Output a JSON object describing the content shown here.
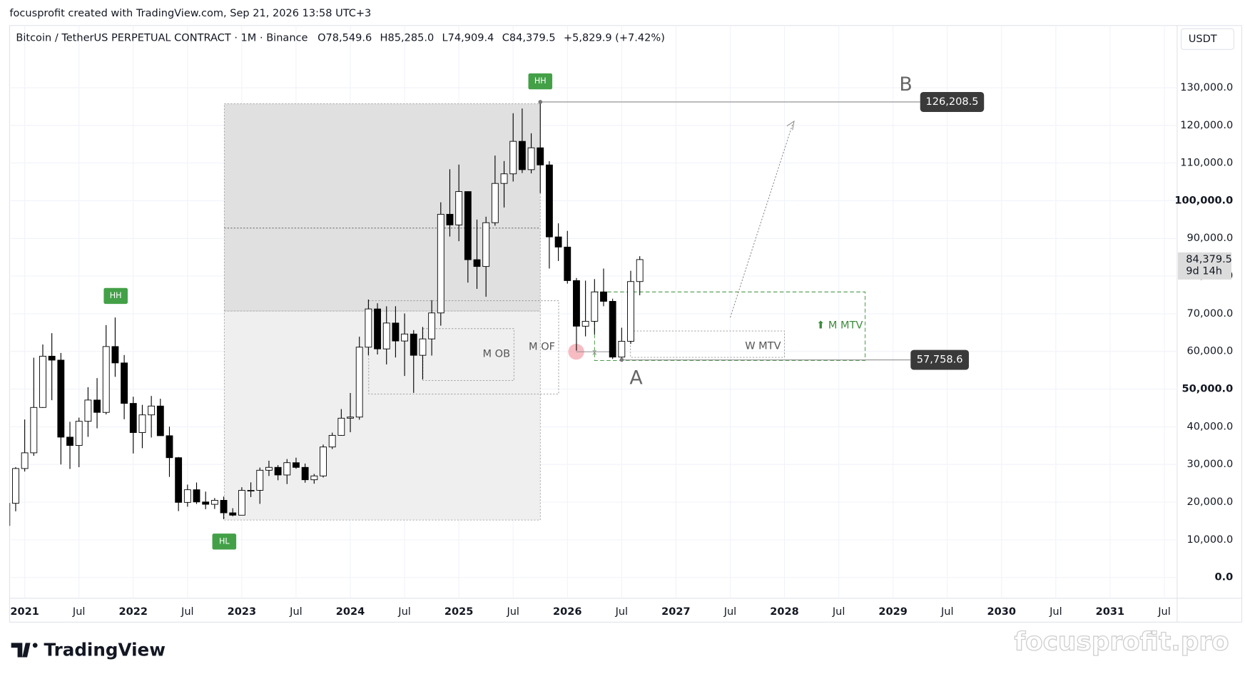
{
  "header": {
    "attribution": "focusprofit created with TradingView.com, Sep 21, 2026 13:58 UTC+3"
  },
  "chart_data": {
    "type": "candlestick",
    "title": "Bitcoin / TetherUS PERPETUAL CONTRACT · 1M · Binance",
    "legend_values": [
      "O78,549.6",
      "H85,285.0",
      "L74,909.4",
      "C84,379.5",
      "+5,829.9 (+7.42%)"
    ],
    "currency": "USDT",
    "x": [
      "2020-11",
      "2020-12",
      "2021-01",
      "2021-02",
      "2021-03",
      "2021-04",
      "2021-05",
      "2021-06",
      "2021-07",
      "2021-08",
      "2021-09",
      "2021-10",
      "2021-11",
      "2021-12",
      "2022-01",
      "2022-02",
      "2022-03",
      "2022-04",
      "2022-05",
      "2022-06",
      "2022-07",
      "2022-08",
      "2022-09",
      "2022-10",
      "2022-11",
      "2022-12",
      "2023-01",
      "2023-02",
      "2023-03",
      "2023-04",
      "2023-05",
      "2023-06",
      "2023-07",
      "2023-08",
      "2023-09",
      "2023-10",
      "2023-11",
      "2023-12",
      "2024-01",
      "2024-02",
      "2024-03",
      "2024-04",
      "2024-05",
      "2024-06",
      "2024-07",
      "2024-08",
      "2024-09",
      "2024-10",
      "2024-11",
      "2024-12",
      "2025-01",
      "2025-02",
      "2025-03",
      "2025-04",
      "2025-05",
      "2025-06",
      "2025-07",
      "2025-08",
      "2025-09",
      "2025-10",
      "2025-11",
      "2025-12",
      "2026-01",
      "2026-02",
      "2026-03",
      "2026-04",
      "2026-05",
      "2026-06",
      "2026-07",
      "2026-08",
      "2026-09"
    ],
    "open": [
      13791,
      19695,
      28923,
      33092,
      45135,
      58740,
      57697,
      37253,
      35045,
      41461,
      47100,
      43820,
      61300,
      56950,
      46216,
      38466,
      43160,
      45510,
      37630,
      31801,
      19942,
      23297,
      20048,
      19423,
      20491,
      17165,
      16542,
      23125,
      23141,
      28465,
      29233,
      27210,
      30472,
      29232,
      25941,
      26962,
      34640,
      37724,
      42284,
      42580,
      61131,
      71280,
      60672,
      67540,
      62772,
      64628,
      58974,
      63327,
      70215,
      96407,
      93576,
      102429,
      84350,
      82550,
      94172,
      104591,
      107135,
      115764,
      108246,
      114049,
      109500,
      90400,
      87700,
      78800,
      66700,
      68000,
      75800,
      73300,
      58500,
      62700,
      78549.6
    ],
    "high": [
      19863,
      29300,
      41950,
      58352,
      61844,
      64854,
      59592,
      41330,
      42448,
      50500,
      52920,
      67000,
      69000,
      59053,
      47990,
      45821,
      48189,
      47444,
      40023,
      31982,
      24668,
      25211,
      22799,
      21085,
      21480,
      18387,
      23960,
      25250,
      29185,
      31000,
      29820,
      31431,
      31804,
      30244,
      27483,
      35280,
      38450,
      44700,
      48969,
      63913,
      73777,
      72797,
      71979,
      71997,
      70079,
      65660,
      66498,
      73620,
      99588,
      108353,
      109588,
      102500,
      95000,
      95758,
      111980,
      110530,
      123218,
      124474,
      117900,
      126208.5,
      110500,
      94000,
      92000,
      79500,
      78800,
      79200,
      82000,
      74000,
      66300,
      81400,
      85285.0
    ],
    "low": [
      13195,
      17572,
      28130,
      32296,
      45000,
      47044,
      30000,
      28805,
      29278,
      37332,
      39600,
      43283,
      53256,
      42000,
      32917,
      34322,
      37155,
      37578,
      26700,
      17622,
      18781,
      19520,
      18125,
      18190,
      15476,
      16256,
      16499,
      21351,
      19549,
      26942,
      25811,
      24800,
      28861,
      25166,
      24901,
      26538,
      34097,
      37617,
      38555,
      41884,
      59005,
      59191,
      56552,
      58402,
      53485,
      49000,
      52550,
      58895,
      66835,
      90500,
      89256,
      78258,
      76606,
      74508,
      93377,
      98200,
      105100,
      107350,
      107255,
      102000,
      82000,
      84000,
      78000,
      60200,
      64000,
      64500,
      72000,
      58000,
      57758.6,
      62000,
      74909.4
    ],
    "close": [
      19695,
      28923,
      33092,
      45135,
      58740,
      57694,
      37253,
      35045,
      41461,
      47100,
      43824,
      61299,
      56950,
      46216,
      38466,
      43160,
      45510,
      37630,
      31801,
      19942,
      23293,
      20050,
      19431,
      20490,
      17164,
      16542,
      23125,
      23141,
      28465,
      29233,
      27210,
      30472,
      29232,
      25941,
      26962,
      34639,
      37724,
      42284,
      42580,
      61131,
      71280,
      60672,
      67540,
      62772,
      64628,
      58974,
      63327,
      70215,
      96407,
      93576,
      102429,
      84350,
      82550,
      94172,
      104591,
      107135,
      115764,
      108246,
      114049,
      109500,
      90400,
      87700,
      78800,
      66700,
      68000,
      75800,
      73300,
      58500,
      62700,
      78549.6,
      84379.5
    ],
    "up_color": "#ffffff",
    "down_color": "#000000",
    "border_color": "#000000",
    "ylim": [
      -5500,
      146500
    ],
    "yticks": [
      {
        "value": 0,
        "label": "0.0"
      },
      {
        "value": 10000,
        "label": "10,000.0"
      },
      {
        "value": 20000,
        "label": "20,000.0"
      },
      {
        "value": 30000,
        "label": "30,000.0"
      },
      {
        "value": 40000,
        "label": "40,000.0"
      },
      {
        "value": 50000,
        "label": "50,000.0"
      },
      {
        "value": 60000,
        "label": "60,000.0"
      },
      {
        "value": 70000,
        "label": "70,000.0"
      },
      {
        "value": 80000,
        "label": "80,000.0"
      },
      {
        "value": 90000,
        "label": "90,000.0"
      },
      {
        "value": 100000,
        "label": "100,000.0"
      },
      {
        "value": 110000,
        "label": "110,000.0"
      },
      {
        "value": 120000,
        "label": "120,000.0"
      },
      {
        "value": 130000,
        "label": "130,000.0"
      }
    ],
    "xlim": [
      "2020-11",
      "2031-08"
    ],
    "xticks": [
      {
        "value": "2021-01",
        "label": "2021"
      },
      {
        "value": "2021-07",
        "label": "Jul"
      },
      {
        "value": "2022-01",
        "label": "2022"
      },
      {
        "value": "2022-07",
        "label": "Jul"
      },
      {
        "value": "2023-01",
        "label": "2023"
      },
      {
        "value": "2023-07",
        "label": "Jul"
      },
      {
        "value": "2024-01",
        "label": "2024"
      },
      {
        "value": "2024-07",
        "label": "Jul"
      },
      {
        "value": "2025-01",
        "label": "2025"
      },
      {
        "value": "2025-07",
        "label": "Jul"
      },
      {
        "value": "2026-01",
        "label": "2026"
      },
      {
        "value": "2026-07",
        "label": "Jul"
      },
      {
        "value": "2027-01",
        "label": "2027"
      },
      {
        "value": "2027-07",
        "label": "Jul"
      },
      {
        "value": "2028-01",
        "label": "2028"
      },
      {
        "value": "2028-07",
        "label": "Jul"
      },
      {
        "value": "2029-01",
        "label": "2029"
      },
      {
        "value": "2029-07",
        "label": "Jul"
      },
      {
        "value": "2030-01",
        "label": "2030"
      },
      {
        "value": "2030-07",
        "label": "Jul"
      },
      {
        "value": "2031-01",
        "label": "2031"
      },
      {
        "value": "2031-07",
        "label": "Jul"
      }
    ],
    "grid": true,
    "last_price": {
      "value": 84379.5,
      "label": "84,379.5"
    },
    "countdown": "9d 14h",
    "price_labels": [
      {
        "value": 126208.5,
        "label": "126,208.5"
      },
      {
        "value": 57758.6,
        "label": "57,758.6"
      }
    ],
    "annotations": [
      "HH",
      "HH",
      "HL",
      "M OB",
      "M OF",
      "W MTV",
      "⬆ M MTV",
      "B",
      "A",
      "x"
    ]
  },
  "branding": {
    "logo": "TradingView",
    "watermark": "focusprofit.pro"
  }
}
